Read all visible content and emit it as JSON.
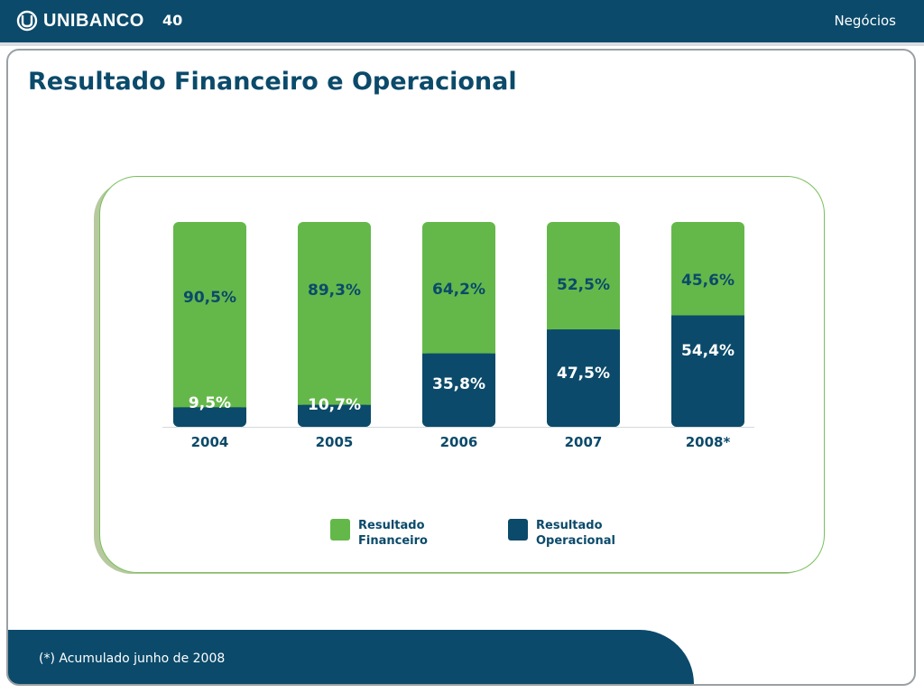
{
  "header": {
    "brand": "UNIBANCO",
    "page_number": "40",
    "section": "Negócios"
  },
  "title": "Resultado Financeiro e Operacional",
  "footer": {
    "note": "(*) Acumulado junho de 2008"
  },
  "colors": {
    "brand_dark": "#0b4a6a",
    "financeiro": "#64b84a",
    "operacional": "#0b4a6a"
  },
  "chart_data": {
    "type": "bar",
    "stacked": true,
    "categories": [
      "2004",
      "2005",
      "2006",
      "2007",
      "2008*"
    ],
    "series": [
      {
        "name": "Resultado Operacional",
        "values": [
          9.5,
          10.7,
          35.8,
          47.5,
          54.4
        ],
        "labels": [
          "9,5%",
          "10,7%",
          "35,8%",
          "47,5%",
          "54,4%"
        ],
        "color": "#0b4a6a"
      },
      {
        "name": "Resultado Financeiro",
        "values": [
          90.5,
          89.3,
          64.2,
          52.5,
          45.6
        ],
        "labels": [
          "90,5%",
          "89,3%",
          "64,2%",
          "52,5%",
          "45,6%"
        ],
        "color": "#64b84a"
      }
    ],
    "ylim": [
      0,
      100
    ],
    "legend": [
      "Resultado Financeiro",
      "Resultado Operacional"
    ],
    "legend_position": "bottom"
  }
}
